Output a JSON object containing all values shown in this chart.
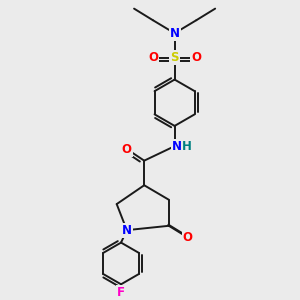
{
  "background_color": "#ebebeb",
  "bond_color": "#1a1a1a",
  "bond_width": 1.4,
  "atom_colors": {
    "N": "#0000ff",
    "O": "#ff0000",
    "S": "#cccc00",
    "F": "#ff00c8",
    "C": "#1a1a1a"
  },
  "font_size": 8.5
}
